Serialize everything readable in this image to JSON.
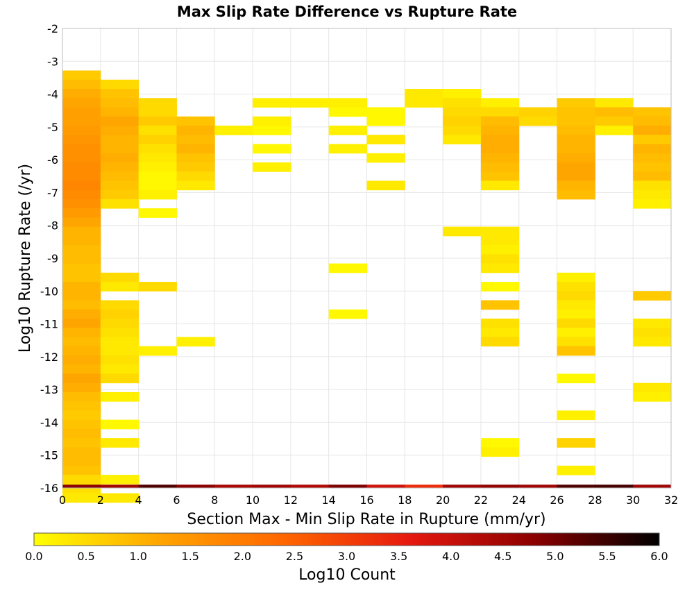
{
  "chart_data": {
    "type": "heatmap",
    "title": "Max Slip Rate Difference vs Rupture Rate",
    "xlabel": "Section Max - Min Slip Rate in Rupture (mm/yr)",
    "ylabel": "Log10 Rupture Rate (/yr)",
    "xlim": [
      0,
      32
    ],
    "ylim": [
      -16,
      -2
    ],
    "x_ticks": [
      "0",
      "2",
      "4",
      "6",
      "8",
      "10",
      "12",
      "14",
      "16",
      "18",
      "20",
      "22",
      "24",
      "26",
      "28",
      "30",
      "32"
    ],
    "y_ticks": [
      "-2",
      "-3",
      "-4",
      "-5",
      "-6",
      "-7",
      "-8",
      "-9",
      "-10",
      "-11",
      "-12",
      "-13",
      "-14",
      "-15",
      "-16"
    ],
    "grid": true,
    "x_bin_width": 2,
    "y_bin_height": 0.28,
    "colorbar": {
      "label": "Log10 Count",
      "min": 0,
      "max": 6,
      "ticks": [
        "0.0",
        "0.5",
        "1.0",
        "1.5",
        "2.0",
        "2.5",
        "3.0",
        "3.5",
        "4.0",
        "4.5",
        "5.0",
        "5.5",
        "6.0"
      ],
      "colors": [
        "#ffff00",
        "#ffa500",
        "#ff6600",
        "#e6190f",
        "#8b0000",
        "#000000"
      ]
    },
    "columns": [
      {
        "x": 0,
        "y0": -3.28,
        "values": [
          0.7,
          0.9,
          1.1,
          1.2,
          1.3,
          1.3,
          1.4,
          1.5,
          1.6,
          1.6,
          1.7,
          1.7,
          1.8,
          1.7,
          1.6,
          1.4,
          1.2,
          1.0,
          1.0,
          0.9,
          0.9,
          0.8,
          0.8,
          1.0,
          1.0,
          0.9,
          1.1,
          1.2,
          1.0,
          0.9,
          1.0,
          1.1,
          1.0,
          1.2,
          1.1,
          0.9,
          0.8,
          0.7,
          0.8,
          0.9,
          0.8,
          0.9,
          0.9,
          0.8,
          0.5,
          0.4,
          0.3
        ]
      },
      {
        "x": 2,
        "y0": -3.56,
        "values": [
          0.5,
          0.8,
          0.9,
          1.0,
          1.2,
          1.1,
          1.0,
          1.0,
          1.1,
          1.0,
          0.9,
          0.8,
          0.7,
          0.4,
          null,
          null,
          null,
          null,
          null,
          null,
          null,
          0.5,
          0.3,
          null,
          0.5,
          0.6,
          0.5,
          0.4,
          0.3,
          0.3,
          0.4,
          0.3,
          0.5,
          null,
          0.2,
          null,
          null,
          0.1,
          null,
          0.3,
          null,
          null,
          null,
          0.2,
          null,
          0.3
        ]
      },
      {
        "x": 4,
        "y0": -4.12,
        "values": [
          0.5,
          0.5,
          0.7,
          0.4,
          0.6,
          0.4,
          0.3,
          0.2,
          0.1,
          0.1,
          0.2,
          null,
          0.1,
          null,
          null,
          null,
          null,
          null,
          null,
          null,
          0.5,
          null,
          null,
          null,
          null,
          null,
          null,
          0.2,
          null,
          null,
          null,
          null,
          null,
          null,
          null,
          null,
          null,
          null,
          null,
          null,
          null,
          null,
          null,
          null,
          null,
          null,
          null,
          null
        ]
      },
      {
        "x": 6,
        "y0": -4.68,
        "values": [
          0.8,
          1.0,
          0.9,
          1.0,
          0.8,
          0.7,
          0.5,
          0.3,
          null,
          null,
          null,
          null,
          null,
          null,
          null,
          null,
          null,
          null,
          null,
          null,
          null,
          null,
          null,
          null,
          0.2
        ]
      },
      {
        "x": 8,
        "y0": -4.96,
        "values": [
          0.2
        ]
      },
      {
        "x": 10,
        "y0": -4.12,
        "values": [
          0.2,
          null,
          0.2,
          0.1,
          null,
          0.1,
          null,
          0.2
        ]
      },
      {
        "x": 12,
        "y0": -4.12,
        "values": [
          0.2
        ]
      },
      {
        "x": 14,
        "y0": -4.12,
        "values": [
          0.2,
          0.1,
          null,
          0.2,
          null,
          0.2,
          null,
          null,
          null,
          null,
          null,
          null,
          null,
          null,
          null,
          null,
          null,
          null,
          0.1,
          null,
          null,
          null,
          null,
          0.1
        ]
      },
      {
        "x": 16,
        "y0": -4.4,
        "values": [
          0.1,
          0.1,
          null,
          0.3,
          null,
          0.2,
          null,
          null,
          0.3
        ]
      },
      {
        "x": 18,
        "y0": -3.84,
        "values": [
          0.3,
          0.3
        ]
      },
      {
        "x": 20,
        "y0": -3.84,
        "values": [
          0.2,
          0.4,
          0.5,
          0.6,
          0.5,
          0.3,
          null,
          null,
          null,
          null,
          null,
          null,
          null,
          null,
          null,
          0.3
        ]
      },
      {
        "x": 22,
        "y0": -4.12,
        "values": [
          0.2,
          0.5,
          0.9,
          1.0,
          1.1,
          1.1,
          1.0,
          0.9,
          0.8,
          0.3,
          null,
          null,
          null,
          null,
          0.3,
          0.3,
          0.2,
          0.4,
          0.3,
          null,
          0.1,
          null,
          0.8,
          null,
          0.4,
          0.3,
          0.5,
          null,
          null,
          null,
          null,
          null,
          null,
          null,
          null,
          null,
          null,
          0.1,
          0.2
        ]
      },
      {
        "x": 24,
        "y0": -4.4,
        "values": [
          0.6,
          0.5
        ]
      },
      {
        "x": 26,
        "y0": -4.12,
        "values": [
          0.7,
          0.8,
          0.8,
          0.9,
          1.0,
          1.0,
          1.1,
          1.2,
          1.2,
          1.0,
          0.9,
          null,
          null,
          null,
          null,
          null,
          null,
          null,
          null,
          0.2,
          0.4,
          0.5,
          0.3,
          0.2,
          0.5,
          0.2,
          0.4,
          0.8,
          null,
          null,
          0.1,
          null,
          null,
          null,
          0.2,
          null,
          null,
          0.6,
          null,
          null,
          0.2
        ]
      },
      {
        "x": 28,
        "y0": -4.12,
        "values": [
          0.3,
          0.9,
          0.7,
          0.2
        ]
      },
      {
        "x": 30,
        "y0": -4.4,
        "values": [
          0.8,
          0.9,
          1.1,
          0.7,
          1.0,
          0.9,
          0.8,
          0.9,
          0.4,
          0.3,
          0.2,
          null,
          null,
          null,
          null,
          null,
          null,
          null,
          null,
          null,
          0.7,
          null,
          null,
          0.3,
          0.4,
          0.3,
          null,
          null,
          null,
          null,
          0.3,
          0.2
        ]
      }
    ],
    "bottom_row": {
      "y": -15.9,
      "values": [
        4.8,
        4.5,
        5.3,
        4.8,
        4.4,
        4.5,
        4.3,
        4.9,
        3.9,
        3.3,
        4.5,
        4.7,
        4.5,
        5.3,
        5.4,
        4.5
      ]
    }
  }
}
